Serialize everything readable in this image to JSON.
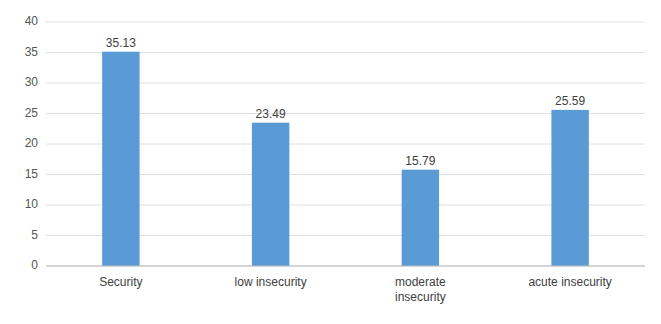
{
  "chart_data": {
    "type": "bar",
    "categories": [
      "Security",
      "low insecurity",
      "moderate\ninsecurity",
      "acute insecurity"
    ],
    "values": [
      35.13,
      23.49,
      15.79,
      25.59
    ],
    "color": "#5b9bd5",
    "ylim": [
      0,
      40
    ],
    "yticks": [
      0,
      5,
      10,
      15,
      20,
      25,
      30,
      35,
      40
    ],
    "grid": true,
    "data_labels": true
  }
}
